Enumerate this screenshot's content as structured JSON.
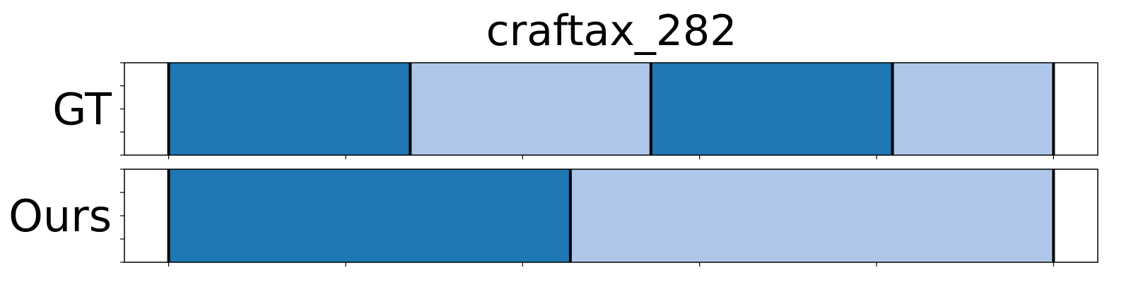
{
  "chart_data": {
    "type": "segmentation-timeline",
    "title": "craftax_282",
    "x_range": [
      0,
      11
    ],
    "rows": [
      {
        "label": "GT",
        "segments": [
          {
            "start": 0.5,
            "end": 3.23,
            "color": "#1f77b4"
          },
          {
            "start": 3.23,
            "end": 5.95,
            "color": "#aec7e8"
          },
          {
            "start": 5.95,
            "end": 8.68,
            "color": "#1f77b4"
          },
          {
            "start": 8.68,
            "end": 10.5,
            "color": "#aec7e8"
          }
        ],
        "boundaries": [
          0.5,
          3.23,
          5.95,
          8.68,
          10.5
        ]
      },
      {
        "label": "Ours",
        "segments": [
          {
            "start": 0.5,
            "end": 5.04,
            "color": "#1f77b4"
          },
          {
            "start": 5.04,
            "end": 10.5,
            "color": "#aec7e8"
          }
        ],
        "boundaries": [
          0.5,
          5.04,
          10.5
        ]
      }
    ],
    "x_ticks": [
      0.5,
      2.5,
      4.5,
      6.5,
      8.5,
      10.5
    ],
    "x_tick_labels_visible": false,
    "y_tick_labels_visible": false,
    "grid": false,
    "legend": "none"
  }
}
